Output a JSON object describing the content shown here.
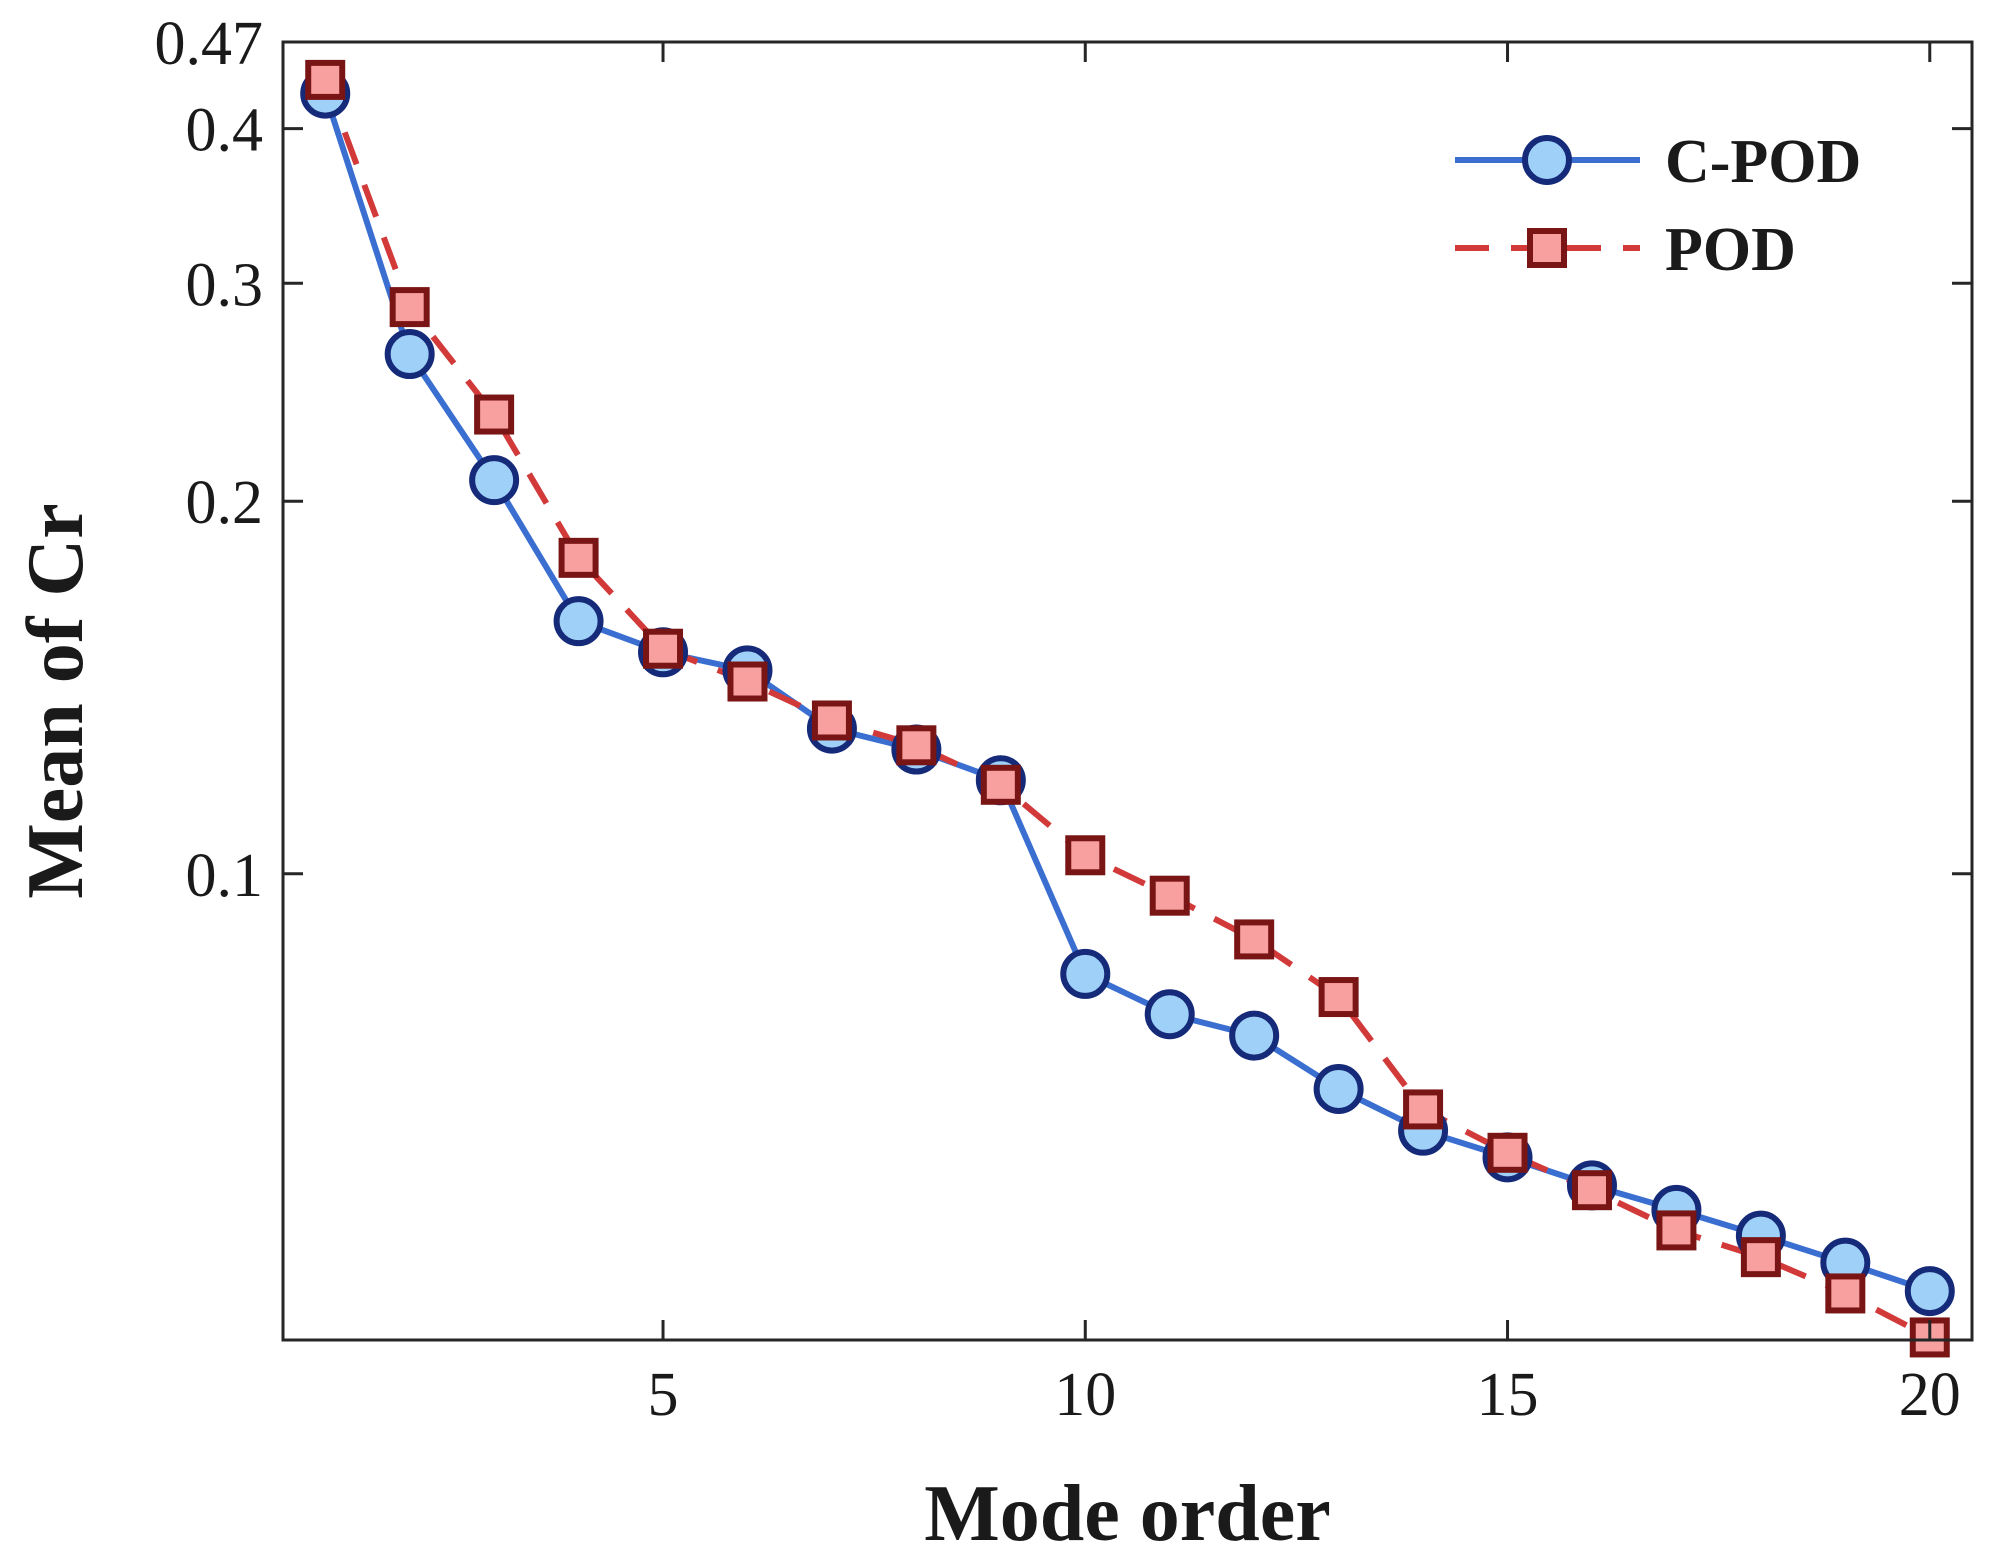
{
  "chart_data": {
    "type": "line",
    "xlabel": "Mode order",
    "ylabel": "Mean of Cr",
    "x": [
      1,
      2,
      3,
      4,
      5,
      6,
      7,
      8,
      9,
      10,
      11,
      12,
      13,
      14,
      15,
      16,
      17,
      18,
      19,
      20
    ],
    "xlim": [
      0.5,
      20.5
    ],
    "xticks": [
      5,
      10,
      15,
      20
    ],
    "yscale": "log",
    "ylim": [
      0.042,
      0.47
    ],
    "yticks": [
      0.1,
      0.2,
      0.3,
      0.4,
      0.47
    ],
    "ytick_labels": [
      "0.1",
      "0.2",
      "0.3",
      "0.4",
      "0.47"
    ],
    "grid": false,
    "legend_position": "top-right",
    "series": [
      {
        "name": "C-POD",
        "line_style": "solid",
        "marker": "circle",
        "line_color": "#3a6fd1",
        "marker_fill": "#9fd0f7",
        "marker_edge": "#152a78",
        "values": [
          0.427,
          0.263,
          0.208,
          0.16,
          0.151,
          0.146,
          0.131,
          0.126,
          0.119,
          0.083,
          0.077,
          0.074,
          0.067,
          0.062,
          0.059,
          0.056,
          0.0535,
          0.051,
          0.0485,
          0.046
        ]
      },
      {
        "name": "POD",
        "line_style": "dashed",
        "marker": "square",
        "line_color": "#d23a3a",
        "marker_fill": "#f8a0a0",
        "marker_edge": "#7a1515",
        "values": [
          0.438,
          0.287,
          0.235,
          0.18,
          0.152,
          0.143,
          0.133,
          0.127,
          0.118,
          0.1035,
          0.096,
          0.0885,
          0.0795,
          0.0645,
          0.0595,
          0.0555,
          0.0515,
          0.049,
          0.0458,
          0.0422
        ]
      }
    ]
  }
}
